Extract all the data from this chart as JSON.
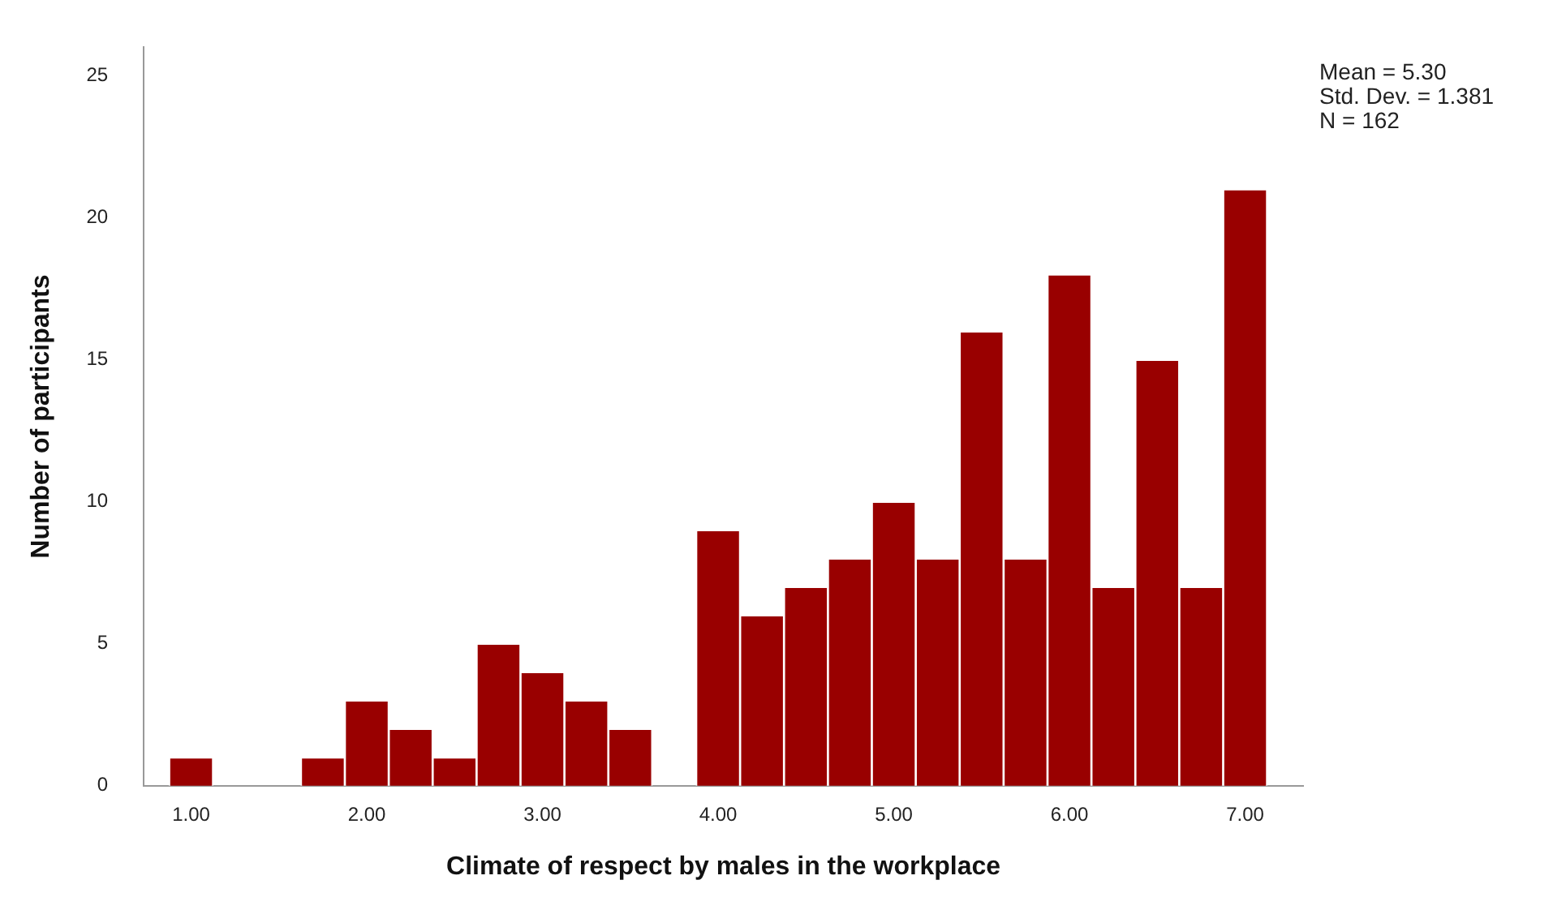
{
  "chart_data": {
    "type": "histogram",
    "xlabel": "Climate of respect by males in the workplace",
    "ylabel": "Number of participants",
    "bins": [
      0.875,
      1.125,
      1.375,
      1.625,
      1.875,
      2.125,
      2.375,
      2.625,
      2.875,
      3.125,
      3.375,
      3.625,
      3.875,
      4.125,
      4.375,
      4.625,
      4.875,
      5.125,
      5.375,
      5.625,
      5.875,
      6.125,
      6.375,
      6.625,
      6.875,
      7.125
    ],
    "values": [
      1,
      0,
      0,
      1,
      3,
      2,
      1,
      5,
      4,
      3,
      2,
      0,
      9,
      6,
      7,
      8,
      10,
      8,
      16,
      8,
      18,
      7,
      15,
      7,
      21
    ],
    "color": "#990000",
    "xlim": [
      0.73,
      7.33
    ],
    "xticks": [
      {
        "value": 1,
        "label": "1.00"
      },
      {
        "value": 2,
        "label": "2.00"
      },
      {
        "value": 3,
        "label": "3.00"
      },
      {
        "value": 4,
        "label": "4.00"
      },
      {
        "value": 5,
        "label": "5.00"
      },
      {
        "value": 6,
        "label": "6.00"
      },
      {
        "value": 7,
        "label": "7.00"
      }
    ],
    "ylim": [
      0,
      26
    ],
    "yticks": [
      0,
      5,
      10,
      15,
      20,
      25
    ],
    "grid": false,
    "legend": false,
    "annotations": [
      "Mean = 5.30",
      "Std. Dev. = 1.381",
      "N = 162"
    ]
  }
}
